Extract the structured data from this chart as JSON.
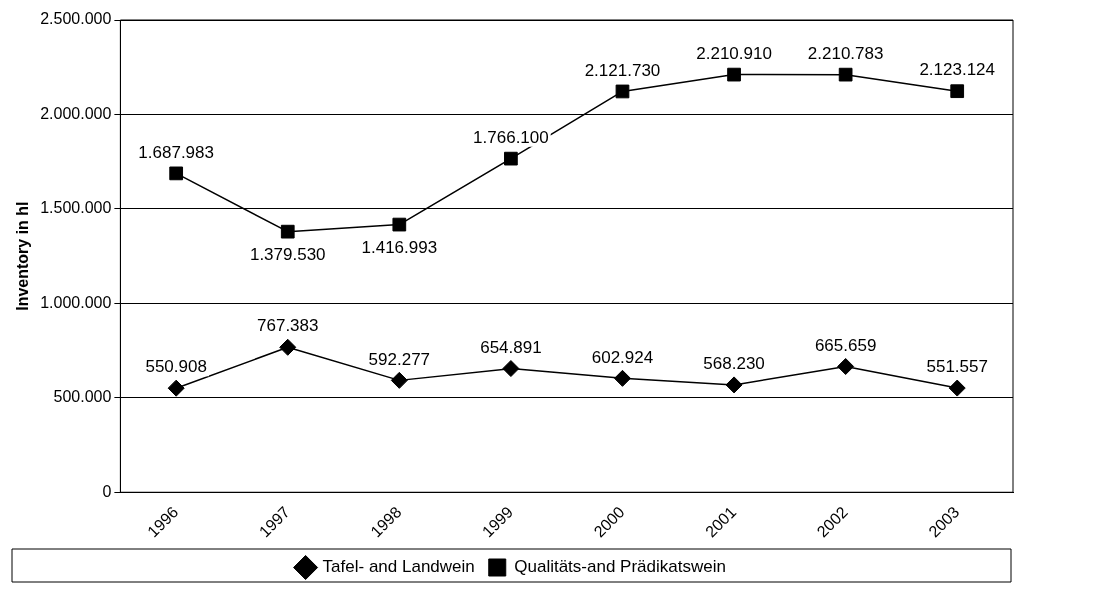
{
  "chart_data": {
    "type": "line",
    "ylabel": "Inventory in hl",
    "categories": [
      "1996",
      "1997",
      "1998",
      "1999",
      "2000",
      "2001",
      "2002",
      "2003"
    ],
    "series": [
      {
        "name": "Tafel- and Landwein",
        "color": "#000000",
        "marker": "diamond",
        "values": [
          550908,
          767383,
          592277,
          654891,
          602924,
          568230,
          665659,
          551557
        ],
        "value_labels": [
          "550.908",
          "767.383",
          "592.277",
          "654.891",
          "602.924",
          "568.230",
          "665.659",
          "551.557"
        ]
      },
      {
        "name": "Qualitäts-and Prädikatswein",
        "color": "#000000",
        "marker": "square",
        "values": [
          1687983,
          1379530,
          1416993,
          1766100,
          2121730,
          2210910,
          2210783,
          2123124
        ],
        "value_labels": [
          "1.687.983",
          "1.379.530",
          "1.416.993",
          "1.766.100",
          "2.121.730",
          "2.210.910",
          "2.210.783",
          "2.123.124"
        ]
      }
    ],
    "ylim": [
      0,
      2500000
    ],
    "yticks": [
      0,
      {
        "value": 500000,
        "label": "500.000"
      },
      {
        "value": 1000000,
        "label": "1.000.000"
      },
      {
        "value": 1500000,
        "label": "1.500.000"
      },
      {
        "value": 2000000,
        "label": "2.000.000"
      },
      {
        "value": 2500000,
        "label": "2.500.000"
      }
    ],
    "grid": "y",
    "legend": "bottom",
    "line_style": "solid"
  }
}
